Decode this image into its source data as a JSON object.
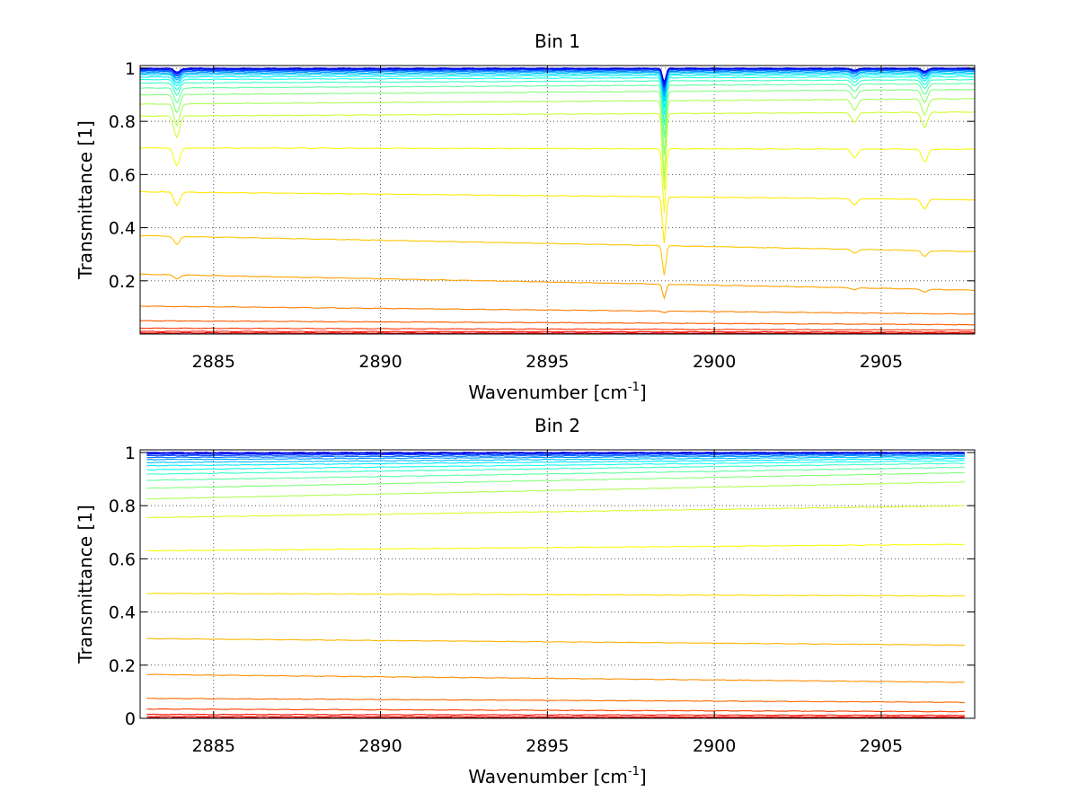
{
  "chart_data": [
    {
      "type": "line",
      "title": "Bin 1",
      "xlabel": {
        "text": "Wavenumber [cm",
        "sup": "-1",
        "suffix": "]"
      },
      "ylabel": "Transmittance [1]",
      "xlim": [
        2882.8,
        2907.8
      ],
      "ylim": [
        0,
        1.01
      ],
      "xticks": [
        2885,
        2890,
        2895,
        2900,
        2905
      ],
      "xtick_labels": [
        "2885",
        "2890",
        "2895",
        "2900",
        "2905"
      ],
      "yticks": [
        0.2,
        0.4,
        0.6,
        0.8,
        1
      ],
      "ytick_labels": [
        "0.2",
        "0.4",
        "0.6",
        "0.8",
        "1"
      ],
      "grid": true,
      "colormap": "jet",
      "x_range": [
        2882.8,
        2907.8
      ],
      "dips": [
        {
          "x": 2898.5,
          "depth": 0.09,
          "width": 0.07
        },
        {
          "x": 2883.9,
          "depth": 0.025,
          "width": 0.12
        },
        {
          "x": 2904.2,
          "depth": 0.012,
          "width": 0.12
        },
        {
          "x": 2906.3,
          "depth": 0.018,
          "width": 0.12
        }
      ],
      "series_levels": [
        {
          "start": 1.0,
          "end": 1.0
        },
        {
          "start": 0.998,
          "end": 0.999
        },
        {
          "start": 0.996,
          "end": 0.998
        },
        {
          "start": 0.993,
          "end": 0.996
        },
        {
          "start": 0.99,
          "end": 0.994
        },
        {
          "start": 0.986,
          "end": 0.991
        },
        {
          "start": 0.981,
          "end": 0.987
        },
        {
          "start": 0.975,
          "end": 0.982
        },
        {
          "start": 0.967,
          "end": 0.976
        },
        {
          "start": 0.957,
          "end": 0.968
        },
        {
          "start": 0.944,
          "end": 0.957
        },
        {
          "start": 0.925,
          "end": 0.942
        },
        {
          "start": 0.9,
          "end": 0.92
        },
        {
          "start": 0.865,
          "end": 0.885
        },
        {
          "start": 0.82,
          "end": 0.835
        },
        {
          "start": 0.7,
          "end": 0.695
        },
        {
          "start": 0.535,
          "end": 0.505
        },
        {
          "start": 0.37,
          "end": 0.31
        },
        {
          "start": 0.225,
          "end": 0.165
        },
        {
          "start": 0.105,
          "end": 0.075
        },
        {
          "start": 0.05,
          "end": 0.035
        },
        {
          "start": 0.022,
          "end": 0.015
        },
        {
          "start": 0.01,
          "end": 0.007
        },
        {
          "start": 0.004,
          "end": 0.003
        },
        {
          "start": 0.001,
          "end": 0.001
        }
      ]
    },
    {
      "type": "line",
      "title": "Bin 2",
      "xlabel": {
        "text": "Wavenumber [cm",
        "sup": "-1",
        "suffix": "]"
      },
      "ylabel": "Transmittance [1]",
      "xlim": [
        2882.8,
        2907.8
      ],
      "ylim": [
        0,
        1.01
      ],
      "xticks": [
        2885,
        2890,
        2895,
        2900,
        2905
      ],
      "xtick_labels": [
        "2885",
        "2890",
        "2895",
        "2900",
        "2905"
      ],
      "yticks": [
        0,
        0.2,
        0.4,
        0.6,
        0.8,
        1
      ],
      "ytick_labels": [
        "0",
        "0.2",
        "0.4",
        "0.6",
        "0.8",
        "1"
      ],
      "grid": true,
      "colormap": "jet",
      "x_range": [
        2883.0,
        2907.5
      ],
      "dips": [],
      "series_levels": [
        {
          "start": 1.0,
          "end": 1.0
        },
        {
          "start": 0.997,
          "end": 1.0
        },
        {
          "start": 0.993,
          "end": 0.999
        },
        {
          "start": 0.988,
          "end": 0.997
        },
        {
          "start": 0.981,
          "end": 0.994
        },
        {
          "start": 0.973,
          "end": 0.99
        },
        {
          "start": 0.962,
          "end": 0.985
        },
        {
          "start": 0.95,
          "end": 0.978
        },
        {
          "start": 0.935,
          "end": 0.97
        },
        {
          "start": 0.918,
          "end": 0.96
        },
        {
          "start": 0.895,
          "end": 0.945
        },
        {
          "start": 0.865,
          "end": 0.925
        },
        {
          "start": 0.825,
          "end": 0.89
        },
        {
          "start": 0.755,
          "end": 0.8
        },
        {
          "start": 0.63,
          "end": 0.655
        },
        {
          "start": 0.47,
          "end": 0.46
        },
        {
          "start": 0.3,
          "end": 0.275
        },
        {
          "start": 0.165,
          "end": 0.135
        },
        {
          "start": 0.075,
          "end": 0.06
        },
        {
          "start": 0.035,
          "end": 0.025
        },
        {
          "start": 0.015,
          "end": 0.011
        },
        {
          "start": 0.007,
          "end": 0.005
        },
        {
          "start": 0.002,
          "end": 0.002
        }
      ]
    }
  ]
}
